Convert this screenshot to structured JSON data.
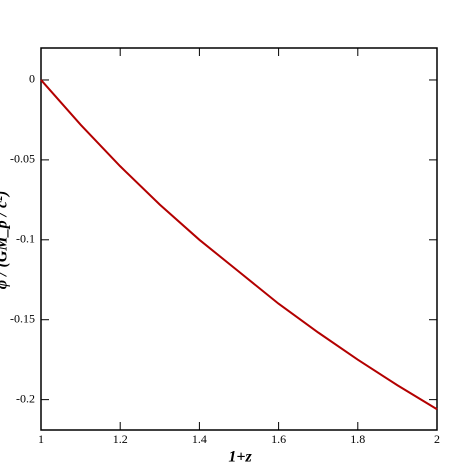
{
  "chart_data": {
    "type": "line",
    "x_label": "1+z",
    "y_label": "φ / (GM_p / c²)",
    "x": [
      1,
      1.1,
      1.2,
      1.3,
      1.4,
      1.5,
      1.6,
      1.7,
      1.8,
      1.9,
      2
    ],
    "series": [
      {
        "color": "#b30000",
        "values": [
          0,
          -0.028,
          -0.054,
          -0.078,
          -0.1,
          -0.12,
          -0.14,
          -0.158,
          -0.175,
          -0.191,
          -0.206
        ]
      }
    ],
    "xlim": [
      1,
      2
    ],
    "xticks": [
      1,
      1.2,
      1.4,
      1.6,
      1.8,
      2
    ],
    "ylim": [
      -0.219,
      0.02
    ],
    "yticks": [
      0,
      -0.05,
      -0.1,
      -0.15,
      -0.2
    ]
  }
}
